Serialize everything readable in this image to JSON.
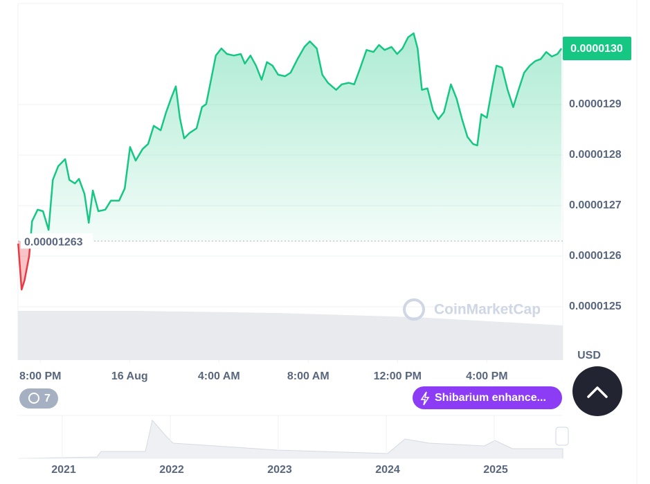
{
  "chart_data": {
    "type": "line",
    "x": [
      19.01,
      19.16,
      19.29,
      19.5,
      19.63,
      19.88,
      20.12,
      20.37,
      20.56,
      20.8,
      21.11,
      21.3,
      21.55,
      21.73,
      21.98,
      22.17,
      22.35,
      22.6,
      22.91,
      23.16,
      23.53,
      23.78,
      24.02,
      24.27,
      24.58,
      24.83,
      25.08,
      25.39,
      25.63,
      25.88,
      26.07,
      26.25,
      26.44,
      26.69,
      27.0,
      27.24,
      27.43,
      27.62,
      27.86,
      28.11,
      28.36,
      28.67,
      28.98,
      29.16,
      29.41,
      29.66,
      29.91,
      30.15,
      30.4,
      30.65,
      30.96,
      31.21,
      31.52,
      31.83,
      32.07,
      32.38,
      32.63,
      32.88,
      33.25,
      33.5,
      33.81,
      34.06,
      34.31,
      34.61,
      34.92,
      35.17,
      35.42,
      35.73,
      35.98,
      36.22,
      36.47,
      36.72,
      36.9,
      37.09,
      37.34,
      37.59,
      37.83,
      38.08,
      38.39,
      38.64,
      38.89,
      39.13,
      39.38,
      39.57,
      39.75,
      40.0,
      40.25,
      40.43,
      40.68,
      40.93,
      41.18,
      41.42,
      41.67,
      41.92,
      42.17,
      42.41,
      42.66,
      42.91,
      43.16,
      43.34
    ],
    "values": [
      1.2625e-05,
      1.2534e-05,
      1.2552e-05,
      1.26e-05,
      1.2669e-05,
      1.2692e-05,
      1.2689e-05,
      1.2652e-05,
      1.2751e-05,
      1.2778e-05,
      1.2792e-05,
      1.2751e-05,
      1.2744e-05,
      1.2753e-05,
      1.2723e-05,
      1.2666e-05,
      1.273e-05,
      1.2689e-05,
      1.2692e-05,
      1.271e-05,
      1.271e-05,
      1.2734e-05,
      1.2816e-05,
      1.2789e-05,
      1.2812e-05,
      1.2822e-05,
      1.2858e-05,
      1.2849e-05,
      1.2884e-05,
      1.2915e-05,
      1.2936e-05,
      1.2874e-05,
      1.2833e-05,
      1.2844e-05,
      1.2853e-05,
      1.2895e-05,
      1.2901e-05,
      1.2943e-05,
      1.2997e-05,
      1.3011e-05,
      1.3e-05,
      1.2997e-05,
      1.3e-05,
      1.2981e-05,
      1.2997e-05,
      1.2977e-05,
      1.2949e-05,
      1.2984e-05,
      1.2977e-05,
      1.2959e-05,
      1.2956e-05,
      1.2963e-05,
      1.299e-05,
      1.3014e-05,
      1.3025e-05,
      1.3011e-05,
      1.2959e-05,
      1.2943e-05,
      1.2929e-05,
      1.294e-05,
      1.2943e-05,
      1.294e-05,
      1.297e-05,
      1.3008e-05,
      1.3004e-05,
      1.3018e-05,
      1.3008e-05,
      1.3014e-05,
      1.3e-05,
      1.3011e-05,
      1.3033e-05,
      1.3041e-05,
      1.3011e-05,
      1.2929e-05,
      1.2932e-05,
      1.2888e-05,
      1.2871e-05,
      1.2885e-05,
      1.294e-05,
      1.2912e-05,
      1.2871e-05,
      1.2836e-05,
      1.2822e-05,
      1.2819e-05,
      1.2881e-05,
      1.2874e-05,
      1.2936e-05,
      1.2977e-05,
      1.2973e-05,
      1.2929e-05,
      1.2895e-05,
      1.2929e-05,
      1.2963e-05,
      1.2977e-05,
      1.2986e-05,
      1.299e-05,
      1.3004e-05,
      1.2995e-05,
      1.3e-05,
      1.3011e-05
    ],
    "color": "#16c784",
    "below_color": "#ea3943",
    "baseline": 1.263e-05,
    "price_label": {
      "value": 1.3011e-05,
      "label": "0.0000130"
    },
    "ylim": [
      1.25e-05,
      1.31e-05
    ],
    "yticks": [
      1.25e-05,
      1.26e-05,
      1.27e-05,
      1.28e-05,
      1.29e-05
    ],
    "xlim": [
      19,
      43.4
    ],
    "xticks": [
      {
        "value": 20,
        "label": "8:00 PM"
      },
      {
        "value": 24,
        "label": "16 Aug"
      },
      {
        "value": 28,
        "label": "4:00 AM"
      },
      {
        "value": 32,
        "label": "8:00 AM"
      },
      {
        "value": 36,
        "label": "12:00 PM"
      },
      {
        "value": 40,
        "label": "4:00 PM"
      }
    ],
    "grid": true,
    "currency": "USD",
    "watermark": "CoinMarketCap"
  },
  "controls": {
    "history_count": "7",
    "news_pill": "Shibarium enhance..."
  },
  "navigator": {
    "years": [
      "2021",
      "2022",
      "2023",
      "2024",
      "2025"
    ]
  }
}
